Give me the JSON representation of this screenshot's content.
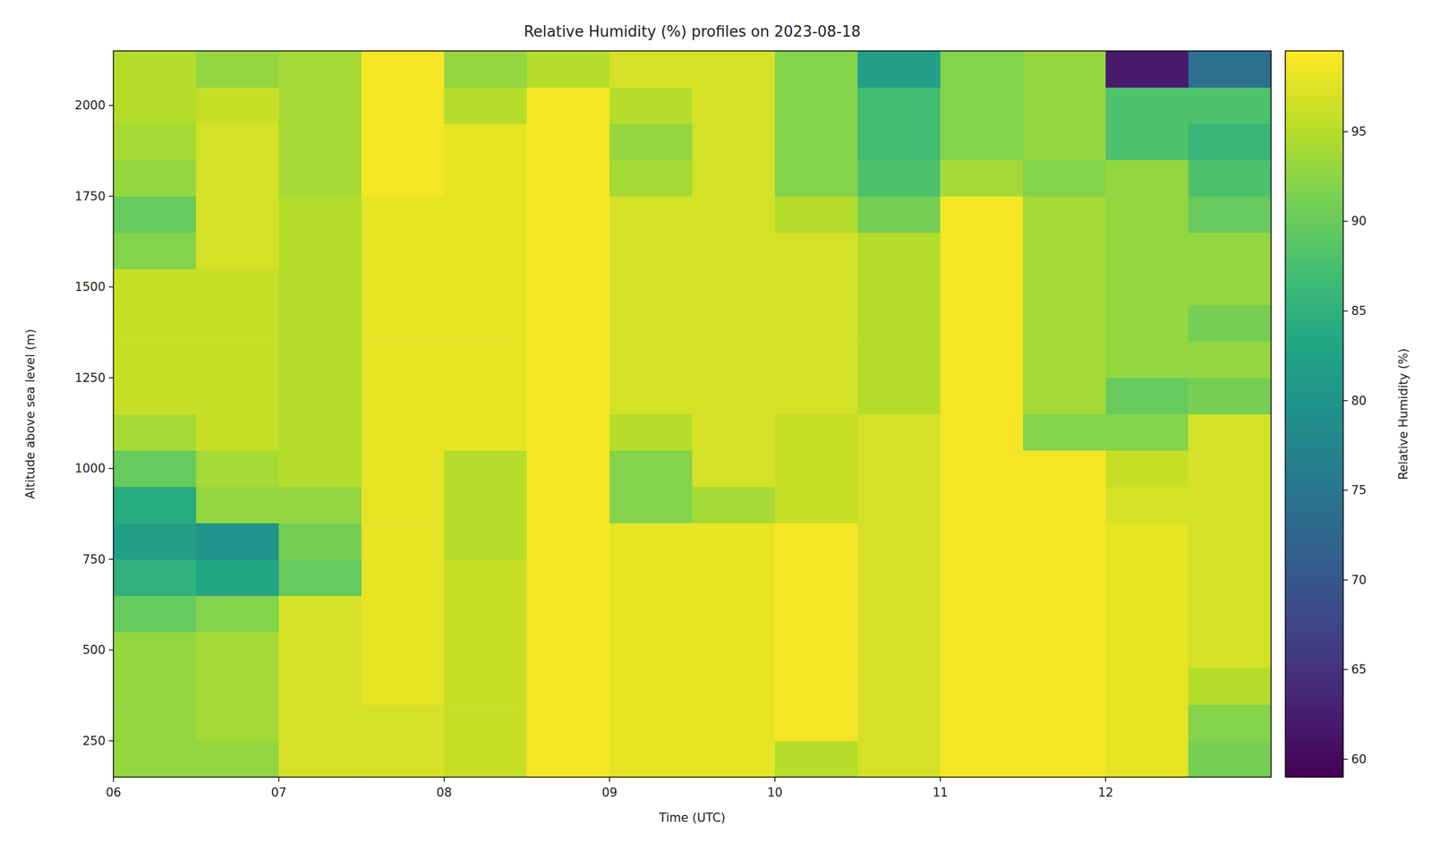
{
  "chart_data": {
    "type": "heatmap",
    "title": "Relative Humidity (%) profiles on 2023-08-18",
    "x_label": "Time (UTC)",
    "y_label": "Altitude above sea level (m)",
    "x": [
      6.25,
      6.75,
      7.25,
      7.75,
      8.25,
      8.75,
      9.25,
      9.75,
      10.25,
      10.75,
      11.25,
      11.75,
      12.25,
      12.75
    ],
    "y": [
      200,
      300,
      400,
      500,
      600,
      700,
      800,
      900,
      1000,
      1100,
      1200,
      1300,
      1400,
      1500,
      1600,
      1700,
      1800,
      1900,
      2000,
      2100
    ],
    "values": [
      [
        93,
        93,
        93,
        93,
        90,
        85,
        82,
        84,
        90,
        94,
        96,
        96,
        96,
        96,
        92,
        90,
        93,
        94,
        95,
        95
      ],
      [
        93,
        94,
        94,
        94,
        92,
        83,
        80,
        93,
        94,
        96,
        96,
        96,
        96,
        96,
        97,
        97,
        97,
        97,
        96,
        93
      ],
      [
        97,
        97,
        97,
        97,
        97,
        90,
        91,
        93,
        95,
        95,
        95,
        95,
        95,
        95,
        95,
        95,
        94,
        94,
        94,
        94
      ],
      [
        97,
        97,
        98,
        98,
        98,
        98,
        98,
        98,
        98,
        98,
        98,
        98,
        98,
        98,
        98,
        98,
        99,
        99,
        99,
        99
      ],
      [
        96,
        96,
        96,
        96,
        96,
        96,
        95,
        95,
        95,
        98,
        98,
        98,
        98,
        98,
        98,
        98,
        98,
        98,
        95,
        93
      ],
      [
        99,
        99,
        99,
        99,
        99,
        99,
        99,
        99,
        99,
        99,
        99,
        99,
        99,
        99,
        99,
        99,
        99,
        99,
        99,
        95
      ],
      [
        98,
        98,
        98,
        98,
        98,
        98,
        98,
        92,
        92,
        95,
        97,
        97,
        97,
        97,
        97,
        97,
        94,
        93,
        95,
        97
      ],
      [
        98,
        98,
        98,
        98,
        98,
        98,
        98,
        94,
        97,
        97,
        97,
        97,
        97,
        97,
        97,
        97,
        97,
        97,
        97,
        97
      ],
      [
        95,
        99,
        99,
        99,
        99,
        99,
        99,
        96,
        96,
        96,
        97,
        97,
        97,
        97,
        97,
        95,
        92,
        92,
        92,
        92
      ],
      [
        97,
        97,
        97,
        97,
        97,
        97,
        97,
        97,
        97,
        97,
        95,
        95,
        95,
        95,
        95,
        91,
        88,
        87,
        87,
        82
      ],
      [
        99,
        99,
        99,
        99,
        99,
        99,
        99,
        99,
        99,
        99,
        99,
        99,
        99,
        99,
        99,
        99,
        94,
        92,
        92,
        92
      ],
      [
        99,
        99,
        99,
        99,
        99,
        99,
        99,
        99,
        99,
        92,
        94,
        94,
        94,
        94,
        94,
        94,
        92,
        93,
        93,
        93
      ],
      [
        98,
        98,
        98,
        98,
        98,
        98,
        98,
        97,
        96,
        92,
        90,
        93,
        93,
        93,
        93,
        93,
        93,
        88,
        88,
        62
      ],
      [
        91,
        92,
        95,
        97,
        97,
        97,
        97,
        97,
        97,
        97,
        91,
        93,
        91,
        93,
        93,
        90,
        88,
        86,
        88,
        74
      ]
    ],
    "xlim": [
      6,
      13
    ],
    "ylim": [
      150,
      2150
    ],
    "xticks": [
      {
        "value": 6,
        "label": "06"
      },
      {
        "value": 7,
        "label": "07"
      },
      {
        "value": 8,
        "label": "08"
      },
      {
        "value": 9,
        "label": "09"
      },
      {
        "value": 10,
        "label": "10"
      },
      {
        "value": 11,
        "label": "11"
      },
      {
        "value": 12,
        "label": "12"
      }
    ],
    "yticks": [
      250,
      500,
      750,
      1000,
      1250,
      1500,
      1750,
      2000
    ],
    "colorbar": {
      "label": "Relative Humidity (%)",
      "range": [
        59,
        99.5
      ],
      "ticks": [
        60,
        65,
        70,
        75,
        80,
        85,
        90,
        95
      ]
    }
  }
}
